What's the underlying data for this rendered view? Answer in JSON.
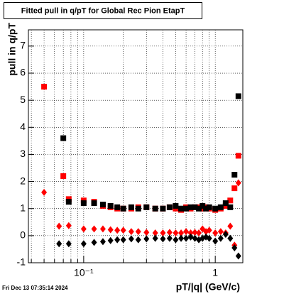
{
  "chart_data": {
    "type": "scatter",
    "title": "Fitted pull in q/pT for Global Rec Pion EtapT",
    "x_label": "pT/|q| (GeV/c)",
    "y_label": "pull in q/pT",
    "timestamp": "Fri Dec 13 07:35:14 2024",
    "xscale": "log",
    "grid": true,
    "xlim": [
      0.038,
      1.62
    ],
    "ylim": [
      -1,
      7.6
    ],
    "xticks": [
      {
        "value": 0.1,
        "label": "10⁻¹"
      },
      1
    ],
    "xminorticks": [
      0.04,
      0.05,
      0.06,
      0.07,
      0.08,
      0.09,
      0.2,
      0.3,
      0.4,
      0.5,
      0.6,
      0.7,
      0.8,
      0.9
    ],
    "yticks": [
      -1,
      0,
      1,
      2,
      3,
      4,
      5,
      6,
      7
    ],
    "series": [
      {
        "color": "#ff0000",
        "marker": "square",
        "x": [
          0.05,
          0.07,
          0.077,
          0.1,
          0.12,
          0.14,
          0.16,
          0.18,
          0.2,
          0.23,
          0.26,
          0.3,
          0.35,
          0.4,
          0.45,
          0.5,
          0.55,
          0.6,
          0.65,
          0.7,
          0.75,
          0.8,
          0.85,
          0.9,
          1.0,
          1.1,
          1.2,
          1.3,
          1.4,
          1.5
        ],
        "values": [
          5.5,
          2.2,
          1.35,
          1.3,
          1.25,
          1.1,
          1.05,
          1.0,
          1.0,
          1.0,
          1.05,
          1.05,
          1.0,
          1.0,
          1.05,
          1.0,
          0.95,
          1.05,
          1.0,
          1.05,
          1.05,
          1.0,
          1.05,
          1.0,
          0.95,
          1.0,
          1.1,
          1.3,
          1.75,
          2.95
        ]
      },
      {
        "color": "#000000",
        "marker": "square",
        "x": [
          0.07,
          0.077,
          0.1,
          0.12,
          0.14,
          0.16,
          0.18,
          0.2,
          0.23,
          0.26,
          0.3,
          0.35,
          0.4,
          0.45,
          0.5,
          0.55,
          0.6,
          0.65,
          0.7,
          0.75,
          0.8,
          0.85,
          0.9,
          1.0,
          1.1,
          1.2,
          1.3,
          1.4,
          1.5
        ],
        "values": [
          3.6,
          1.25,
          1.2,
          1.2,
          1.15,
          1.1,
          1.05,
          1.0,
          1.05,
          1.0,
          1.05,
          1.0,
          1.0,
          1.05,
          1.1,
          1.0,
          1.0,
          1.05,
          1.05,
          1.0,
          1.1,
          1.0,
          1.05,
          1.0,
          1.05,
          1.2,
          1.05,
          2.25,
          5.15
        ]
      },
      {
        "color": "#ff0000",
        "marker": "diamond",
        "x": [
          0.05,
          0.065,
          0.077,
          0.1,
          0.12,
          0.14,
          0.16,
          0.18,
          0.2,
          0.23,
          0.26,
          0.3,
          0.35,
          0.4,
          0.45,
          0.5,
          0.55,
          0.6,
          0.65,
          0.7,
          0.75,
          0.8,
          0.85,
          0.9,
          1.0,
          1.1,
          1.2,
          1.3,
          1.4,
          1.5
        ],
        "values": [
          1.6,
          0.35,
          0.37,
          0.25,
          0.25,
          0.25,
          0.22,
          0.2,
          0.2,
          0.15,
          0.15,
          0.12,
          0.1,
          0.1,
          0.12,
          0.1,
          0.1,
          0.15,
          0.1,
          0.12,
          0.1,
          0.25,
          0.15,
          0.2,
          0.1,
          0.15,
          0.1,
          0.35,
          -0.35,
          1.95
        ]
      },
      {
        "color": "#000000",
        "marker": "diamond",
        "x": [
          0.065,
          0.077,
          0.1,
          0.12,
          0.14,
          0.16,
          0.18,
          0.2,
          0.23,
          0.26,
          0.3,
          0.35,
          0.4,
          0.45,
          0.5,
          0.55,
          0.6,
          0.65,
          0.7,
          0.75,
          0.8,
          0.85,
          0.9,
          1.0,
          1.1,
          1.2,
          1.3,
          1.4,
          1.5
        ],
        "values": [
          -0.3,
          -0.3,
          -0.3,
          -0.25,
          -0.22,
          -0.18,
          -0.15,
          -0.15,
          -0.12,
          -0.15,
          -0.12,
          -0.1,
          -0.12,
          -0.1,
          -0.15,
          -0.1,
          -0.1,
          -0.05,
          -0.1,
          -0.15,
          -0.1,
          -0.05,
          -0.1,
          -0.2,
          -0.1,
          0.05,
          -0.1,
          -0.45,
          -0.75
        ]
      }
    ]
  }
}
